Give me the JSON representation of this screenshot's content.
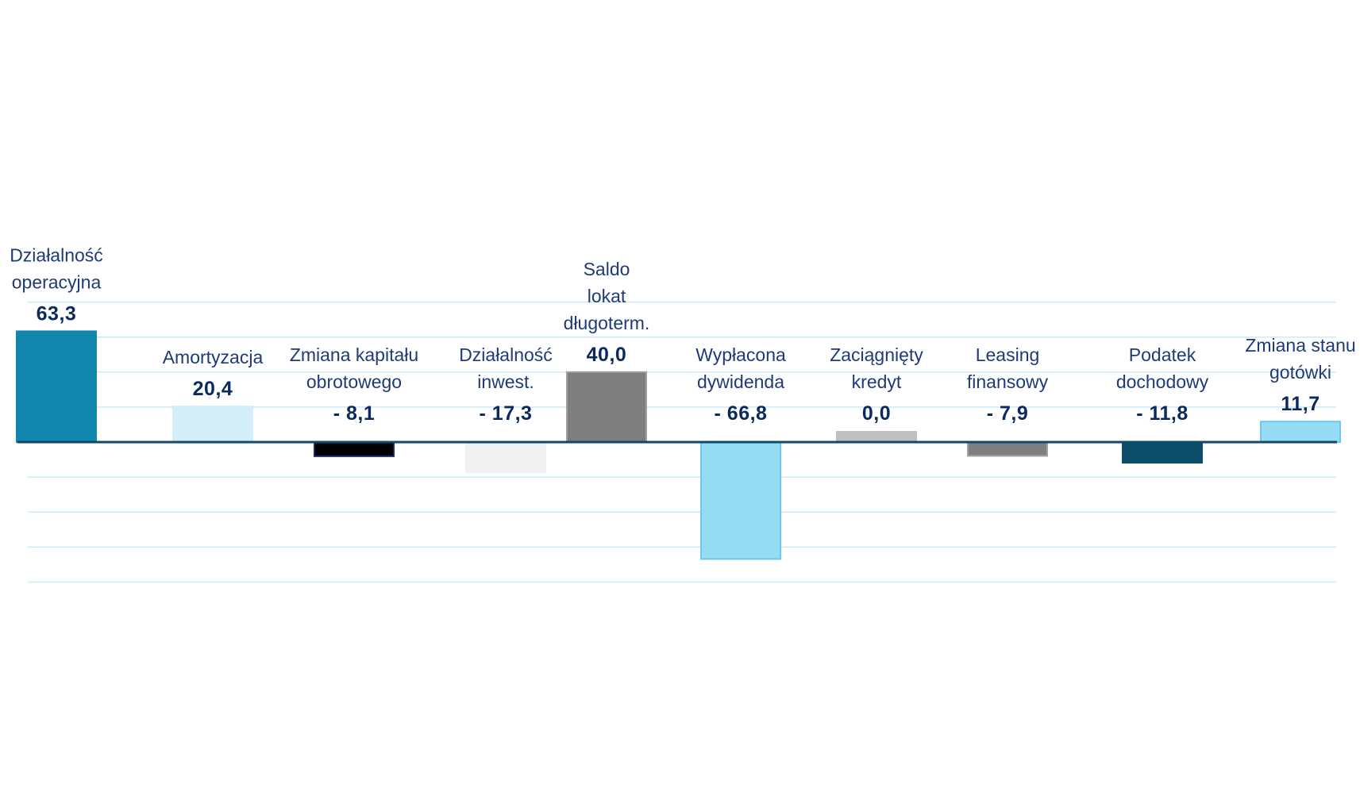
{
  "chart_data": {
    "type": "bar",
    "title": "",
    "xlabel": "",
    "ylabel": "",
    "ylim": [
      -80,
      80
    ],
    "grid": true,
    "legend": "none",
    "categories": [
      "Działalność operacyjna",
      "Amortyzacja",
      "Zmiana kapitału obrotowego",
      "Działalność inwest.",
      "Saldo lokat długoterm.",
      "Wypłacona dywidenda",
      "Zaciągnięty kredyt",
      "Leasing finansowy",
      "Podatek dochodowy",
      "Zmiana stanu gotówki"
    ],
    "label_lines": [
      [
        "Działalność",
        "operacyjna"
      ],
      [
        "Amortyzacja"
      ],
      [
        "Zmiana kapitału",
        "obrotowego"
      ],
      [
        "Działalność",
        "inwest."
      ],
      [
        "Saldo",
        "lokat",
        "długoterm."
      ],
      [
        "Wypłacona",
        "dywidenda"
      ],
      [
        "Zaciągnięty",
        "kredyt"
      ],
      [
        "Leasing",
        "finansowy"
      ],
      [
        "Podatek",
        "dochodowy"
      ],
      [
        "Zmiana stanu",
        "gotówki"
      ]
    ],
    "values": [
      63.3,
      20.4,
      -8.1,
      -17.3,
      40.0,
      -66.8,
      0.0,
      -7.9,
      -11.8,
      11.7
    ],
    "value_labels": [
      "63,3",
      "20,4",
      "- 8,1",
      "- 17,3",
      "40,0",
      "-  66,8",
      "0,0",
      "- 7,9",
      "- 11,8",
      "11,7"
    ],
    "colors": [
      "#1386ad",
      "#d3eef9",
      "#000000",
      "#f1f1f1",
      "#7f7f7f",
      "#96dcf5",
      "#bfbfbf",
      "#7f7f7f",
      "#0a4e6a",
      "#96dcf5"
    ],
    "outline_colors": [
      "#1386ad",
      "#d3eef9",
      "#1a2b6b",
      "#f1f1f1",
      "#a0a0a0",
      "#6cc9ee",
      "#bfbfbf",
      "#a0a0a0",
      "#0a4e6a",
      "#6cc9ee"
    ],
    "axis_color": "#0d4a6b",
    "grid_color": "#cdeaf6"
  }
}
